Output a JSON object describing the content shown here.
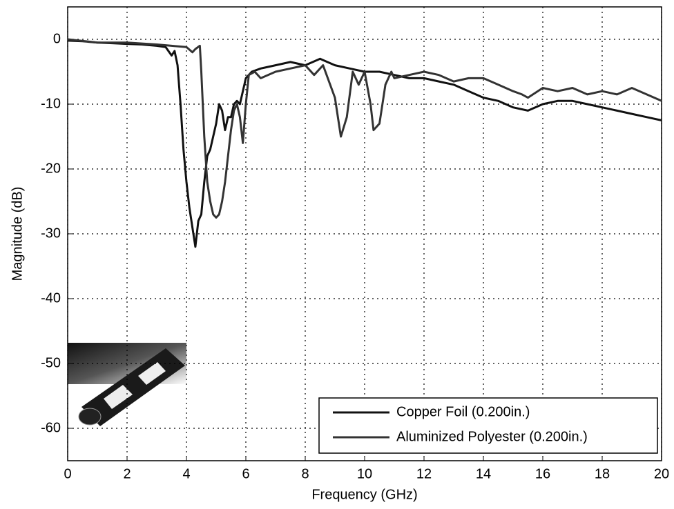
{
  "chart_data": {
    "type": "line",
    "xlabel": "Frequency (GHz)",
    "ylabel": "Magnitude (dB)",
    "xlim": [
      0,
      20
    ],
    "xticks": [
      0,
      2,
      4,
      6,
      8,
      10,
      12,
      14,
      16,
      18,
      20
    ],
    "ylim": [
      -65,
      5
    ],
    "yticks": [
      -60,
      -50,
      -40,
      -30,
      -20,
      -10,
      0
    ],
    "grid": true,
    "legend": "lower right",
    "series": [
      {
        "name": "Copper Foil (0.200in.)",
        "color": "#111111",
        "x": [
          0,
          0.5,
          1,
          1.5,
          2,
          2.5,
          3,
          3.3,
          3.5,
          3.6,
          3.7,
          3.8,
          3.9,
          4.0,
          4.1,
          4.2,
          4.3,
          4.4,
          4.5,
          4.6,
          4.7,
          4.8,
          4.9,
          5.0,
          5.1,
          5.2,
          5.3,
          5.4,
          5.5,
          5.6,
          5.7,
          5.8,
          6.0,
          6.2,
          6.5,
          7,
          7.5,
          8,
          8.5,
          9,
          9.5,
          10,
          10.5,
          11,
          11.5,
          12,
          12.5,
          13,
          13.5,
          14,
          14.5,
          15,
          15.5,
          16,
          16.5,
          17,
          17.5,
          18,
          18.5,
          19,
          19.5,
          20
        ],
        "values": [
          -0.2,
          -0.3,
          -0.5,
          -0.6,
          -0.7,
          -0.8,
          -1,
          -1.2,
          -2.5,
          -1.8,
          -4,
          -10,
          -17,
          -22,
          -26,
          -29,
          -32,
          -28,
          -27,
          -22,
          -18,
          -17,
          -15,
          -13,
          -10,
          -11,
          -14,
          -12,
          -12,
          -10,
          -9.5,
          -10,
          -6,
          -5,
          -4.5,
          -4,
          -3.5,
          -4,
          -3,
          -4,
          -4.5,
          -5,
          -5,
          -5.5,
          -6,
          -6,
          -6.5,
          -7,
          -8,
          -9,
          -9.5,
          -10.5,
          -11,
          -10,
          -9.5,
          -9.5,
          -10,
          -10.5,
          -11,
          -11.5,
          -12,
          -12.5
        ]
      },
      {
        "name": "Aluminized Polyester (0.200in.)",
        "color": "#333333",
        "x": [
          0,
          1,
          2,
          3,
          3.5,
          4,
          4.2,
          4.3,
          4.45,
          4.5,
          4.6,
          4.7,
          4.8,
          4.9,
          5.0,
          5.1,
          5.2,
          5.3,
          5.4,
          5.5,
          5.6,
          5.7,
          5.8,
          5.9,
          6.0,
          6.1,
          6.3,
          6.5,
          7,
          7.5,
          8,
          8.3,
          8.6,
          9,
          9.2,
          9.4,
          9.6,
          9.8,
          10,
          10.2,
          10.3,
          10.5,
          10.7,
          10.9,
          11,
          11.5,
          12,
          12.5,
          13,
          13.5,
          14,
          14.5,
          15,
          15.3,
          15.5,
          16,
          16.5,
          17,
          17.5,
          18,
          18.5,
          19,
          19.5,
          20
        ],
        "values": [
          0,
          -0.5,
          -0.5,
          -0.8,
          -1,
          -1.2,
          -2,
          -1.5,
          -1,
          -5,
          -15,
          -22,
          -25,
          -27,
          -27.5,
          -27,
          -25,
          -22,
          -18,
          -14,
          -11,
          -10,
          -12,
          -16,
          -10,
          -5.5,
          -5,
          -6,
          -5,
          -4.5,
          -4,
          -5.5,
          -4,
          -9,
          -15,
          -12,
          -5,
          -7,
          -5,
          -10,
          -14,
          -13,
          -7,
          -5,
          -6,
          -5.5,
          -5,
          -5.5,
          -6.5,
          -6,
          -6,
          -7,
          -8,
          -8.5,
          -9,
          -7.5,
          -8,
          -7.5,
          -8.5,
          -8,
          -8.5,
          -7.5,
          -8.5,
          -9.5
        ]
      }
    ]
  }
}
